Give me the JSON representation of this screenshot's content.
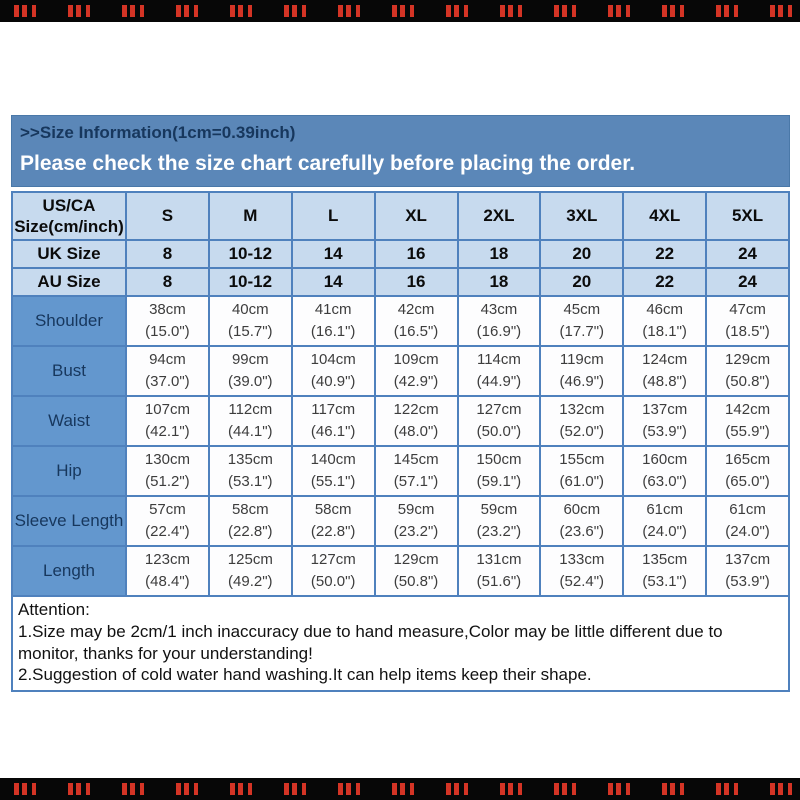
{
  "watermark": {
    "present": true,
    "mark_color": "#d43425",
    "strip_color": "#070707"
  },
  "banner": {
    "title": ">>Size Information(1cm=0.39inch)",
    "subtitle": "Please check the size chart carefully before placing the order."
  },
  "table": {
    "corner_line1": "US/CA",
    "corner_line2": "Size(cm/inch)",
    "size_columns": [
      "S",
      "M",
      "L",
      "XL",
      "2XL",
      "3XL",
      "4XL",
      "5XL"
    ],
    "size_rows": [
      {
        "label": "UK Size",
        "values": [
          "8",
          "10-12",
          "14",
          "16",
          "18",
          "20",
          "22",
          "24"
        ]
      },
      {
        "label": "AU Size",
        "values": [
          "8",
          "10-12",
          "14",
          "16",
          "18",
          "20",
          "22",
          "24"
        ]
      }
    ],
    "measurement_rows": [
      {
        "label": "Shoulder",
        "cm": [
          "38cm",
          "40cm",
          "41cm",
          "42cm",
          "43cm",
          "45cm",
          "46cm",
          "47cm"
        ],
        "inch": [
          "(15.0\")",
          "(15.7\")",
          "(16.1\")",
          "(16.5\")",
          "(16.9\")",
          "(17.7\")",
          "(18.1\")",
          "(18.5\")"
        ]
      },
      {
        "label": "Bust",
        "cm": [
          "94cm",
          "99cm",
          "104cm",
          "109cm",
          "114cm",
          "119cm",
          "124cm",
          "129cm"
        ],
        "inch": [
          "(37.0\")",
          "(39.0\")",
          "(40.9\")",
          "(42.9\")",
          "(44.9\")",
          "(46.9\")",
          "(48.8\")",
          "(50.8\")"
        ]
      },
      {
        "label": "Waist",
        "cm": [
          "107cm",
          "112cm",
          "117cm",
          "122cm",
          "127cm",
          "132cm",
          "137cm",
          "142cm"
        ],
        "inch": [
          "(42.1\")",
          "(44.1\")",
          "(46.1\")",
          "(48.0\")",
          "(50.0\")",
          "(52.0\")",
          "(53.9\")",
          "(55.9\")"
        ]
      },
      {
        "label": "Hip",
        "cm": [
          "130cm",
          "135cm",
          "140cm",
          "145cm",
          "150cm",
          "155cm",
          "160cm",
          "165cm"
        ],
        "inch": [
          "(51.2\")",
          "(53.1\")",
          "(55.1\")",
          "(57.1\")",
          "(59.1\")",
          "(61.0\")",
          "(63.0\")",
          "(65.0\")"
        ]
      },
      {
        "label": "Sleeve Length",
        "cm": [
          "57cm",
          "58cm",
          "58cm",
          "59cm",
          "59cm",
          "60cm",
          "61cm",
          "61cm"
        ],
        "inch": [
          "(22.4\")",
          "(22.8\")",
          "(22.8\")",
          "(23.2\")",
          "(23.2\")",
          "(23.6\")",
          "(24.0\")",
          "(24.0\")"
        ]
      },
      {
        "label": "Length",
        "cm": [
          "123cm",
          "125cm",
          "127cm",
          "129cm",
          "131cm",
          "133cm",
          "135cm",
          "137cm"
        ],
        "inch": [
          "(48.4\")",
          "(49.2\")",
          "(50.0\")",
          "(50.8\")",
          "(51.6\")",
          "(52.4\")",
          "(53.1\")",
          "(53.9\")"
        ]
      }
    ]
  },
  "attention": {
    "heading": "Attention:",
    "lines": [
      "1.Size may be 2cm/1 inch inaccuracy due to hand measure,Color may be little different due to monitor, thanks for your understanding!",
      "2.Suggestion of cold water hand washing.It can help items keep their shape."
    ]
  },
  "colors": {
    "banner_bg": "#5b87b8",
    "banner_title_text": "#17375d",
    "banner_subtitle_text": "#ffffff",
    "table_border": "#4f81bd",
    "header_cell_bg": "#c7daee",
    "measurement_label_bg": "#6397ce",
    "measurement_label_text": "#17375d",
    "data_cell_bg": "#fdfdfe",
    "data_cell_text": "#3d3d3d"
  }
}
